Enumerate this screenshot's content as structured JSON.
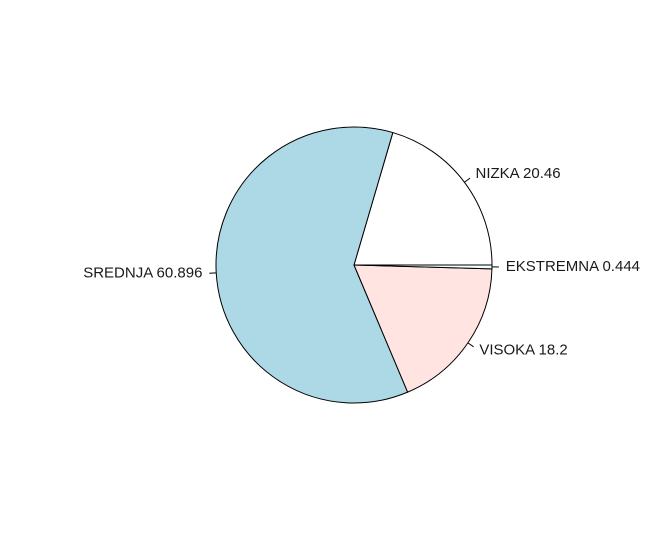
{
  "chart_data": {
    "type": "pie",
    "title": "",
    "start_angle_deg": 0,
    "direction": "counterclockwise",
    "slices": [
      {
        "category": "NIZKA",
        "value": 20.46,
        "label": "NIZKA 20.46",
        "color": "#ffffff"
      },
      {
        "category": "SREDNJA",
        "value": 60.896,
        "label": "SREDNJA 60.896",
        "color": "#add8e6"
      },
      {
        "category": "VISOKA",
        "value": 18.2,
        "label": "VISOKA 18.2",
        "color": "#ffe4e1"
      },
      {
        "category": "EKSTREMNA",
        "value": 0.444,
        "label": "EKSTREMNA 0.444",
        "color": "#f0ffff"
      }
    ]
  }
}
